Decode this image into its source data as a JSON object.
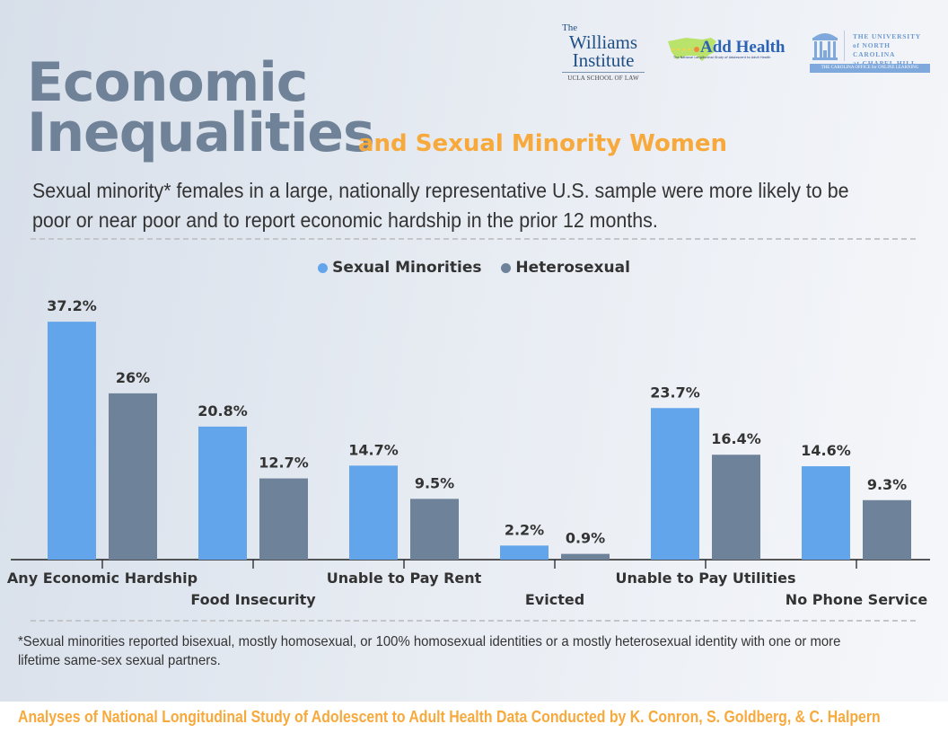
{
  "header": {
    "title_line1": "Economic",
    "title_line2": "Inequalities",
    "subtitle": "and Sexual Minority Women",
    "intro": "Sexual minority* females in a large, nationally representative U.S. sample were more likely to be poor or near poor and to report economic hardship in the prior 12 months."
  },
  "logos": {
    "williams": {
      "the": "The",
      "line1": "Williams",
      "line2": "Institute",
      "sub": "UCLA SCHOOL OF LAW"
    },
    "addhealth": {
      "name": "Add Health",
      "tagline": "The National Longitudinal Study of Adolescent to Adult Health"
    },
    "unc": {
      "line1": "THE UNIVERSITY",
      "line2": "of NORTH CAROLINA",
      "line3": "at CHAPEL HILL",
      "band": "THE CAROLINA OFFICE for ONLINE LEARNING"
    }
  },
  "colors": {
    "sexual_minorities": "#62a5eb",
    "heterosexual": "#6e8399",
    "title": "#6f8298",
    "accent": "#f7a93c",
    "label": "#333333"
  },
  "chart_data": {
    "type": "bar",
    "title": "",
    "xlabel": "",
    "ylabel": "",
    "ylim": [
      0,
      40
    ],
    "grid": false,
    "legend_position": "top-center",
    "value_suffix": "%",
    "categories": [
      "Any Economic Hardship",
      "Food Insecurity",
      "Unable to Pay Rent",
      "Evicted",
      "Unable to Pay Utilities",
      "No Phone Service"
    ],
    "series": [
      {
        "name": "Sexual Minorities",
        "values": [
          37.2,
          20.8,
          14.7,
          2.2,
          23.7,
          14.6
        ],
        "labels": [
          "37.2%",
          "20.8%",
          "14.7%",
          "2.2%",
          "23.7%",
          "14.6%"
        ]
      },
      {
        "name": "Heterosexual",
        "values": [
          26,
          12.7,
          9.5,
          0.9,
          16.4,
          9.3
        ],
        "labels": [
          "26%",
          "12.7%",
          "9.5%",
          "0.9%",
          "16.4%",
          "9.3%"
        ]
      }
    ]
  },
  "footnote": "*Sexual minorities reported bisexual, mostly homosexual, or 100% homosexual identities or a mostly heterosexual identity with one or more lifetime same-sex sexual partners.",
  "credit": "Analyses of National Longitudinal Study of Adolescent to Adult Health Data Conducted by K. Conron, S. Goldberg, & C. Halpern"
}
